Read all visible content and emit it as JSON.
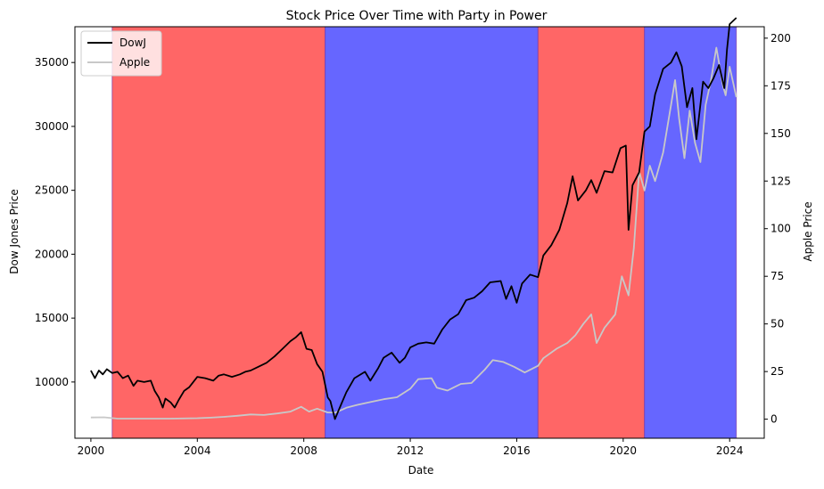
{
  "chart_data": {
    "type": "line",
    "title": "Stock Price Over Time with Party in Power",
    "xlabel": "Date",
    "ylabel_left": "Dow Jones Price",
    "ylabel_right": "Apple Price",
    "xlim": [
      1999.4,
      2025.3
    ],
    "ylim_left": [
      5600,
      37800
    ],
    "ylim_right": [
      -10,
      206
    ],
    "x_ticks": [
      2000,
      2004,
      2008,
      2012,
      2016,
      2020,
      2024
    ],
    "y_ticks_left": [
      10000,
      15000,
      20000,
      25000,
      30000,
      35000
    ],
    "y_ticks_right": [
      0,
      25,
      50,
      75,
      100,
      125,
      150,
      175,
      200
    ],
    "grid": false,
    "legend_position": "top-left",
    "party_periods": [
      {
        "start": 2000.8,
        "end": 2008.8,
        "color": "#ff6666"
      },
      {
        "start": 2008.8,
        "end": 2016.8,
        "color": "#6666ff"
      },
      {
        "start": 2016.8,
        "end": 2020.8,
        "color": "#ff6666"
      },
      {
        "start": 2020.8,
        "end": 2024.25,
        "color": "#6666ff"
      }
    ],
    "series": [
      {
        "name": "DowJ",
        "axis": "left",
        "color": "#000000",
        "x": [
          2000.0,
          2000.15,
          2000.3,
          2000.45,
          2000.6,
          2000.8,
          2001.0,
          2001.2,
          2001.4,
          2001.6,
          2001.75,
          2002.0,
          2002.25,
          2002.4,
          2002.55,
          2002.7,
          2002.8,
          2003.0,
          2003.15,
          2003.3,
          2003.5,
          2003.7,
          2004.0,
          2004.3,
          2004.6,
          2004.8,
          2005.0,
          2005.3,
          2005.6,
          2005.8,
          2006.0,
          2006.3,
          2006.6,
          2006.9,
          2007.2,
          2007.5,
          2007.7,
          2007.9,
          2008.1,
          2008.3,
          2008.5,
          2008.7,
          2008.9,
          2009.0,
          2009.17,
          2009.35,
          2009.6,
          2009.9,
          2010.3,
          2010.5,
          2010.8,
          2011.0,
          2011.3,
          2011.6,
          2011.8,
          2012.0,
          2012.3,
          2012.6,
          2012.9,
          2013.2,
          2013.5,
          2013.8,
          2014.1,
          2014.4,
          2014.7,
          2015.0,
          2015.4,
          2015.6,
          2015.8,
          2016.0,
          2016.2,
          2016.5,
          2016.8,
          2017.0,
          2017.3,
          2017.6,
          2017.9,
          2018.1,
          2018.3,
          2018.6,
          2018.8,
          2019.0,
          2019.3,
          2019.6,
          2019.9,
          2020.1,
          2020.2,
          2020.35,
          2020.6,
          2020.8,
          2021.0,
          2021.2,
          2021.5,
          2021.8,
          2022.0,
          2022.2,
          2022.4,
          2022.6,
          2022.75,
          2023.0,
          2023.2,
          2023.4,
          2023.6,
          2023.8,
          2023.9,
          2024.0,
          2024.25
        ],
        "values": [
          10900,
          10300,
          10900,
          10600,
          11000,
          10700,
          10800,
          10300,
          10500,
          9700,
          10100,
          10000,
          10100,
          9300,
          8800,
          8000,
          8700,
          8400,
          8000,
          8600,
          9300,
          9600,
          10400,
          10300,
          10100,
          10500,
          10600,
          10400,
          10600,
          10800,
          10900,
          11200,
          11500,
          12000,
          12600,
          13200,
          13500,
          13900,
          12600,
          12500,
          11400,
          10800,
          8800,
          8500,
          7100,
          8000,
          9200,
          10300,
          10800,
          10100,
          11100,
          11900,
          12300,
          11500,
          11900,
          12700,
          13000,
          13100,
          13000,
          14100,
          14900,
          15300,
          16400,
          16600,
          17100,
          17800,
          17900,
          16500,
          17500,
          16200,
          17700,
          18400,
          18200,
          19900,
          20700,
          21900,
          24000,
          26100,
          24200,
          25000,
          25800,
          24800,
          26500,
          26400,
          28300,
          28500,
          21900,
          25400,
          26400,
          29600,
          30000,
          32500,
          34500,
          35000,
          35800,
          34700,
          31500,
          33000,
          29000,
          33500,
          33000,
          33800,
          34800,
          33000,
          36000,
          38000,
          38500
        ],
        "visible_values_note": ""
      },
      {
        "name": "Apple",
        "axis": "right",
        "color": "#c8c8c8",
        "x": [
          2000.0,
          2000.5,
          2001.0,
          2002.0,
          2003.0,
          2004.0,
          2004.5,
          2005.0,
          2005.5,
          2006.0,
          2006.5,
          2007.0,
          2007.5,
          2007.9,
          2008.2,
          2008.5,
          2008.9,
          2009.2,
          2009.6,
          2010.0,
          2010.5,
          2011.0,
          2011.5,
          2012.0,
          2012.3,
          2012.8,
          2013.0,
          2013.4,
          2013.9,
          2014.3,
          2014.8,
          2015.1,
          2015.5,
          2015.9,
          2016.3,
          2016.8,
          2017.0,
          2017.5,
          2017.9,
          2018.2,
          2018.5,
          2018.8,
          2019.0,
          2019.3,
          2019.7,
          2019.95,
          2020.2,
          2020.4,
          2020.6,
          2020.8,
          2021.0,
          2021.2,
          2021.5,
          2021.8,
          2021.95,
          2022.1,
          2022.3,
          2022.5,
          2022.7,
          2022.9,
          2023.1,
          2023.3,
          2023.5,
          2023.75,
          2023.85,
          2024.0,
          2024.25
        ],
        "values": [
          0.9,
          1.0,
          0.3,
          0.3,
          0.3,
          0.5,
          0.8,
          1.2,
          1.8,
          2.5,
          2.2,
          3.0,
          4.0,
          6.5,
          4.0,
          5.5,
          3.5,
          3.5,
          6.0,
          7.5,
          9.0,
          10.5,
          11.5,
          16.0,
          21.0,
          21.5,
          16.5,
          15.0,
          18.5,
          19.0,
          26.0,
          31.0,
          30.0,
          27.5,
          24.5,
          28.0,
          32.0,
          37.0,
          40.0,
          44.0,
          50.0,
          55.0,
          40.0,
          48.0,
          55.0,
          75.0,
          65.0,
          90.0,
          130.0,
          120.0,
          133.0,
          125.0,
          140.0,
          165.0,
          178.0,
          158.0,
          137.0,
          162.0,
          145.0,
          135.0,
          165.0,
          178.0,
          195.0,
          175.0,
          170.0,
          185.0,
          169.0
        ],
        "visible_values_note": ""
      }
    ]
  }
}
